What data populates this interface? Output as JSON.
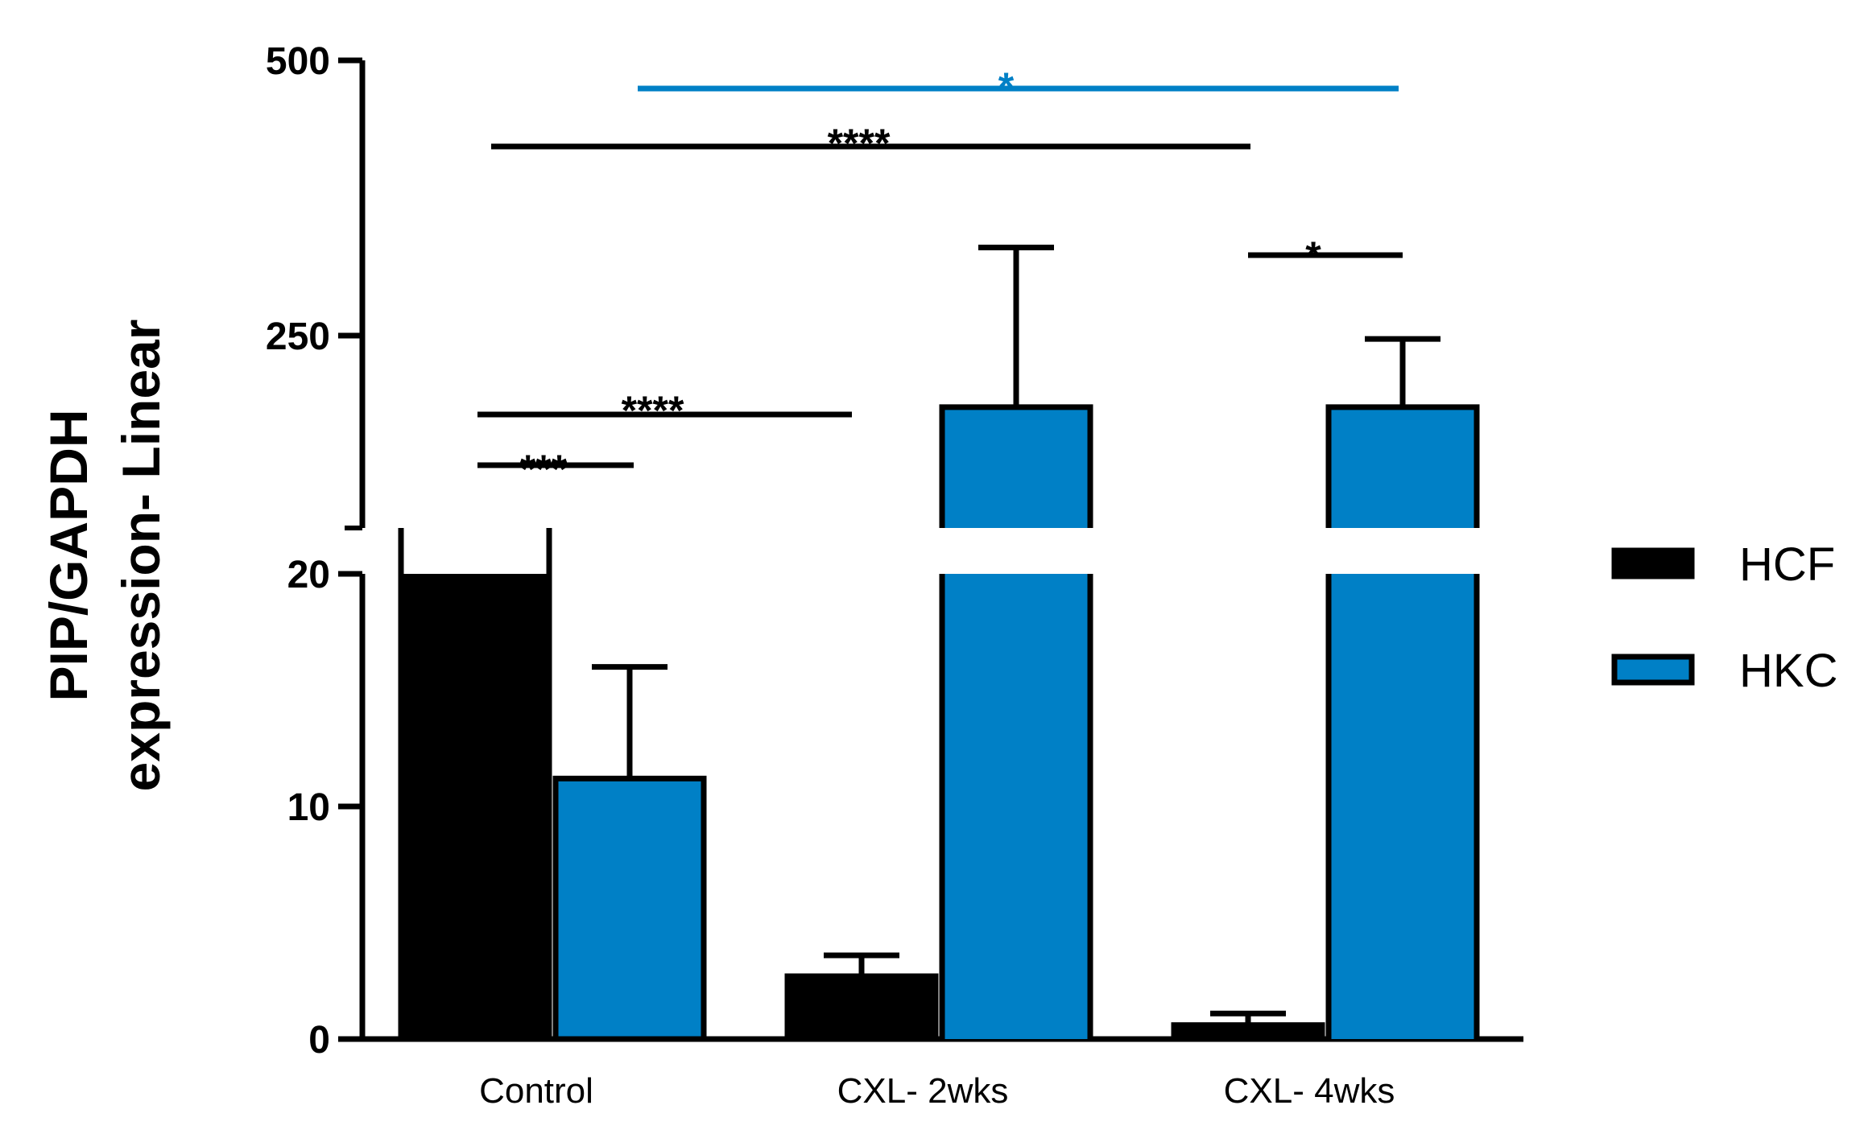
{
  "chart_data": {
    "type": "bar",
    "title": "",
    "xlabel": "",
    "ylabel_lines": [
      "PIP/GAPDH",
      "expression-  Linear"
    ],
    "categories": [
      "Control",
      "CXL- 2wks",
      "CXL- 4wks"
    ],
    "series": [
      {
        "name": "HCF",
        "color": "#000000",
        "values": [
          20.8,
          2.7,
          0.6
        ],
        "errors": [
          0,
          0.9,
          0.5
        ]
      },
      {
        "name": "HKC",
        "color": "#0080c6",
        "values": [
          11.2,
          185,
          185
        ],
        "errors": [
          4.8,
          145,
          62
        ]
      }
    ],
    "y_axis": {
      "broken": true,
      "lower_segment": {
        "range": [
          0,
          20
        ],
        "ticks": [
          "0",
          "10",
          "20"
        ]
      },
      "upper_segment": {
        "range": [
          20,
          500
        ],
        "ticks": [
          "250",
          "500"
        ]
      }
    },
    "legend": {
      "position": "right",
      "entries": [
        "HCF",
        "HKC"
      ]
    },
    "grid": false,
    "annotations": [
      {
        "label": "***",
        "color": "#000000"
      },
      {
        "label": "****",
        "color": "#000000"
      },
      {
        "label": "****",
        "color": "#000000"
      },
      {
        "label": "*",
        "color": "#000000"
      },
      {
        "label": "*",
        "color": "#0080c6"
      }
    ]
  }
}
